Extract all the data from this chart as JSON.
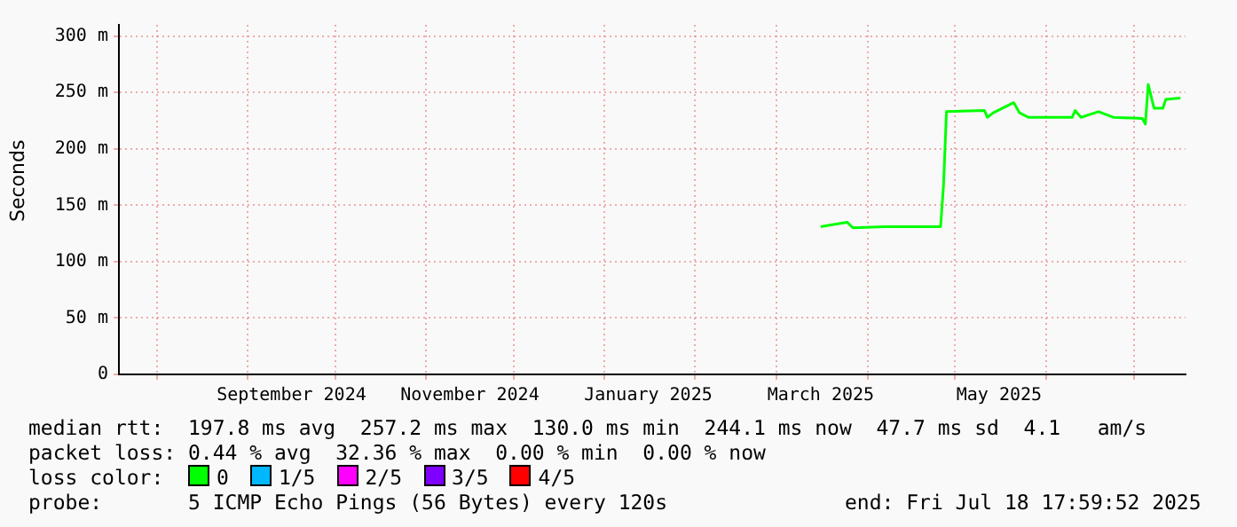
{
  "chart_data": {
    "type": "line",
    "ylabel": "Seconds",
    "legend_title": "loss color:",
    "legend": "bottom",
    "grid": true,
    "marker": "none",
    "line_style": "solid",
    "xlim": [
      "2024-07-19",
      "2025-07-18T18:00"
    ],
    "xticks": [
      {
        "value": "2024-08-01",
        "label": null
      },
      {
        "value": "2024-09-01",
        "label": null
      },
      {
        "value": "2024-09-16",
        "label": "September 2024"
      },
      {
        "value": "2024-10-01",
        "label": null
      },
      {
        "value": "2024-11-01",
        "label": null
      },
      {
        "value": "2024-11-16",
        "label": "November 2024"
      },
      {
        "value": "2024-12-01",
        "label": null
      },
      {
        "value": "2025-01-01",
        "label": null
      },
      {
        "value": "2025-01-16",
        "label": "January 2025"
      },
      {
        "value": "2025-02-01",
        "label": null
      },
      {
        "value": "2025-03-01",
        "label": null
      },
      {
        "value": "2025-03-16",
        "label": "March 2025"
      },
      {
        "value": "2025-04-01",
        "label": null
      },
      {
        "value": "2025-05-01",
        "label": null
      },
      {
        "value": "2025-05-16",
        "label": "May 2025"
      },
      {
        "value": "2025-06-01",
        "label": null
      },
      {
        "value": "2025-07-01",
        "label": null
      }
    ],
    "ylim": [
      0,
      310
    ],
    "yticks": [
      0,
      {
        "value": 50,
        "label": "50 m"
      },
      {
        "value": 100,
        "label": "100 m"
      },
      {
        "value": 150,
        "label": "150 m"
      },
      {
        "value": 200,
        "label": "200 m"
      },
      {
        "value": 250,
        "label": "250 m"
      },
      {
        "value": 300,
        "label": "300 m"
      }
    ],
    "x": [
      "2025-03-16",
      "2025-03-25",
      "2025-03-27",
      "2025-04-07",
      "2025-04-26",
      "2025-04-27",
      "2025-04-28",
      "2025-05-11",
      "2025-05-12",
      "2025-05-14",
      "2025-05-21",
      "2025-05-23",
      "2025-05-26",
      "2025-06-10",
      "2025-06-11",
      "2025-06-13",
      "2025-06-19",
      "2025-06-24",
      "2025-07-04",
      "2025-07-05",
      "2025-07-06",
      "2025-07-08",
      "2025-07-11",
      "2025-07-12",
      "2025-07-17"
    ],
    "series": [
      {
        "name": "0",
        "color": "#00ff00",
        "values": [
          131,
          135,
          130,
          131,
          131,
          168,
          233,
          234,
          228,
          232,
          241,
          232,
          228,
          228,
          234,
          228,
          233,
          228,
          227,
          222,
          257,
          236,
          236,
          244,
          245
        ]
      },
      {
        "name": "1/5",
        "color": "#00b8ff",
        "values": [
          null,
          null,
          null,
          null,
          null,
          null,
          null,
          null,
          null,
          null,
          null,
          null,
          null,
          null,
          null,
          null,
          null,
          null,
          null,
          null,
          null,
          null,
          null,
          null,
          null
        ]
      },
      {
        "name": "2/5",
        "color": "#ff00ff",
        "values": [
          null,
          null,
          null,
          null,
          null,
          null,
          null,
          null,
          null,
          null,
          null,
          null,
          null,
          null,
          null,
          null,
          null,
          null,
          null,
          null,
          null,
          null,
          null,
          null,
          null
        ]
      },
      {
        "name": "3/5",
        "color": "#7e00ff",
        "values": [
          null,
          null,
          null,
          null,
          null,
          null,
          null,
          null,
          null,
          null,
          null,
          null,
          null,
          null,
          null,
          null,
          null,
          null,
          null,
          null,
          null,
          null,
          null,
          null,
          null
        ]
      },
      {
        "name": "4/5",
        "color": "#ff0000",
        "values": [
          null,
          null,
          null,
          null,
          null,
          null,
          null,
          null,
          null,
          null,
          null,
          null,
          null,
          null,
          null,
          null,
          null,
          null,
          null,
          null,
          null,
          null,
          null,
          null,
          null
        ]
      }
    ],
    "annotations": [
      "median rtt:  197.8 ms avg  257.2 ms max  130.0 ms min  244.1 ms now  47.7 ms sd  4.1   am/s",
      "packet loss: 0.44 % avg  32.36 % max  0.00 % min  0.00 % now",
      "probe:       5 ICMP Echo Pings (56 Bytes) every 120s",
      "end: Fri Jul 18 17:59:52 2025"
    ]
  }
}
